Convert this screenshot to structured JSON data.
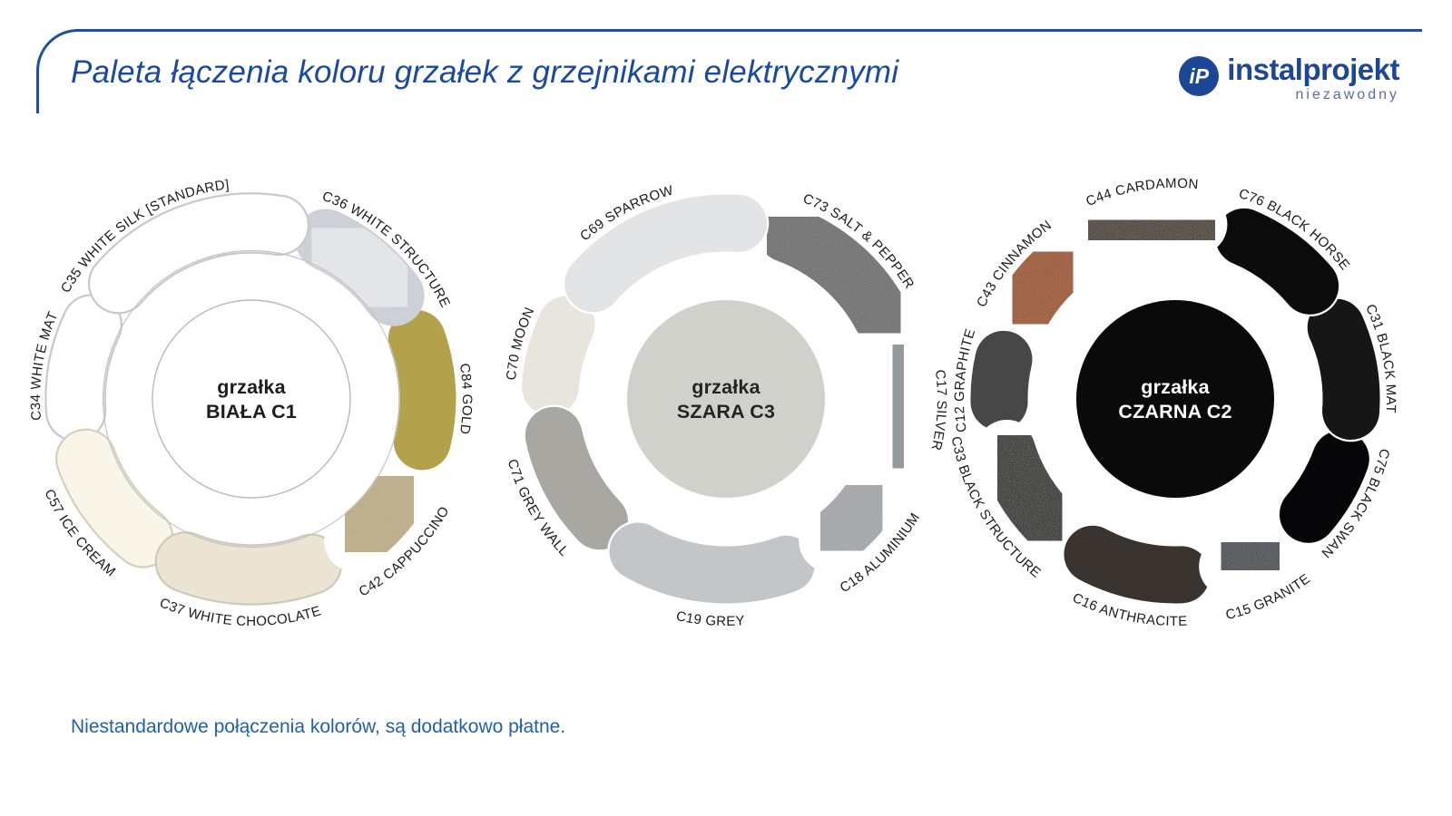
{
  "header": {
    "title": "Paleta łączenia koloru grzałek z grzejnikami elektrycznymi",
    "logo": {
      "icon": "iP",
      "name": "instalprojekt",
      "tagline": "niezawodny"
    },
    "accent_color": "#1d4fa3"
  },
  "footer": {
    "note": "Niestandardowe połączenia kolorów, są dodatkowo płatne."
  },
  "palettes": [
    {
      "id": "biala-c1",
      "center": {
        "line1": "grzałka",
        "line2": "BIAŁA C1",
        "fill": "#ffffff",
        "stroke": "#b9b9b9",
        "text_color": "#1d1d1b"
      },
      "ring_outline": "#c3c3c3",
      "segments": [
        {
          "code": "C35",
          "label": "C35 WHITE SILK [STANDARD]",
          "color": "#ffffff",
          "outline": "#c9c9c9",
          "textured": false,
          "from": 303,
          "to": 377,
          "label_angle": 327,
          "label_side": "top"
        },
        {
          "code": "C36",
          "label": "C36 WHITE STRUCTURE",
          "color": "#e8eaee",
          "outline": "#cdd0d6",
          "textured": true,
          "from": 17,
          "to": 62,
          "label_angle": 42,
          "label_side": "top"
        },
        {
          "code": "C84",
          "label": "C84 GOLD",
          "color": "#b4a14c",
          "outline": "#ffffff",
          "textured": false,
          "from": 62,
          "to": 112,
          "label_angle": 90,
          "label_side": "top"
        },
        {
          "code": "C42",
          "label": "C42 CAPPUCCINO",
          "color": "#bfae86",
          "outline": "#ffffff",
          "textured": true,
          "from": 112,
          "to": 152,
          "label_angle": 135,
          "label_side": "bottom"
        },
        {
          "code": "C37",
          "label": "C37 WHITE CHOCOLATE",
          "color": "#ebe4d3",
          "outline": "#cfc9b9",
          "textured": false,
          "from": 152,
          "to": 210,
          "label_angle": 183,
          "label_side": "bottom"
        },
        {
          "code": "C57",
          "label": "C57 ICE CREAM",
          "color": "#faf5e9",
          "outline": "#d6d0c0",
          "textured": false,
          "from": 210,
          "to": 258,
          "label_angle": 232,
          "label_side": "bottom"
        },
        {
          "code": "C34",
          "label": "C34 WHITE MAT",
          "color": "#ffffff",
          "outline": "#c9c9c9",
          "textured": false,
          "from": 258,
          "to": 303,
          "label_angle": 279,
          "label_side": "top"
        }
      ]
    },
    {
      "id": "szara-c3",
      "center": {
        "line1": "grzałka",
        "line2": "SZARA C3",
        "fill": "#d1d1cc",
        "stroke": "",
        "text_color": "#242424"
      },
      "ring_outline": "",
      "segments": [
        {
          "code": "C69",
          "label": "C69 SPARROW",
          "color": "#e3e4e6",
          "outline": "#ffffff",
          "textured": false,
          "from": 303,
          "to": 372,
          "label_angle": 332,
          "label_side": "top"
        },
        {
          "code": "C73",
          "label": "C73 SALT & PEPPER",
          "color": "#6e6e6e",
          "outline": "#ffffff",
          "textured": true,
          "from": 12,
          "to": 70,
          "label_angle": 40,
          "label_side": "top"
        },
        {
          "code": "C17",
          "label": "C17 SILVER",
          "color": "#8f9498",
          "outline": "#ffffff",
          "textured": true,
          "from": 70,
          "to": 115,
          "label_angle": 93,
          "label_side": "top"
        },
        {
          "code": "C18",
          "label": "C18 ALUMINIUM",
          "color": "#a5a8aa",
          "outline": "#ffffff",
          "textured": true,
          "from": 115,
          "to": 152,
          "label_angle": 135,
          "label_side": "bottom"
        },
        {
          "code": "C19",
          "label": "C19 GREY",
          "color": "#c3c6c8",
          "outline": "#ffffff",
          "textured": false,
          "from": 152,
          "to": 218,
          "label_angle": 184,
          "label_side": "bottom"
        },
        {
          "code": "C71",
          "label": "C71 GREY WALL",
          "color": "#a9a7a2",
          "outline": "#ffffff",
          "textured": false,
          "from": 218,
          "to": 266,
          "label_angle": 240,
          "label_side": "bottom"
        },
        {
          "code": "C70",
          "label": "C70 MOON",
          "color": "#e7e5de",
          "outline": "#ffffff",
          "textured": false,
          "from": 266,
          "to": 303,
          "label_angle": 285,
          "label_side": "top"
        }
      ]
    },
    {
      "id": "czarna-c2",
      "center": {
        "line1": "grzałka",
        "line2": "CZARNA C2",
        "fill": "#0a0a0a",
        "stroke": "",
        "text_color": "#ffffff"
      },
      "ring_outline": "",
      "segments": [
        {
          "code": "C44",
          "label": "C44 CARDAMON",
          "color": "#473a2c",
          "outline": "#ffffff",
          "textured": true,
          "from": 329,
          "to": 375,
          "label_angle": 351,
          "label_side": "top"
        },
        {
          "code": "C76",
          "label": "C76 BLACK HORSE",
          "color": "#0b0b0b",
          "outline": "#ffffff",
          "textured": false,
          "from": 15,
          "to": 58,
          "label_angle": 35,
          "label_side": "top"
        },
        {
          "code": "C31",
          "label": "C31 BLACK MAT",
          "color": "#161616",
          "outline": "#ffffff",
          "textured": false,
          "from": 58,
          "to": 102,
          "label_angle": 79,
          "label_side": "top"
        },
        {
          "code": "C75",
          "label": "C75 BLACK SWAN",
          "color": "#060608",
          "outline": "#ffffff",
          "textured": false,
          "from": 102,
          "to": 139,
          "label_angle": 120,
          "label_side": "top"
        },
        {
          "code": "C15",
          "label": "C15 GRANITE",
          "color": "#454b51",
          "outline": "#ffffff",
          "textured": true,
          "from": 139,
          "to": 170,
          "label_angle": 155,
          "label_side": "bottom"
        },
        {
          "code": "C16",
          "label": "C16 ANTHRACITE",
          "color": "#3a3430",
          "outline": "#ffffff",
          "textured": false,
          "from": 170,
          "to": 216,
          "label_angle": 192,
          "label_side": "bottom"
        },
        {
          "code": "C33",
          "label": "C33 BLACK STRUCTURE",
          "color": "#2b2927",
          "outline": "#ffffff",
          "textured": true,
          "from": 216,
          "to": 261,
          "label_angle": 239,
          "label_side": "bottom"
        },
        {
          "code": "C12",
          "label": "C12 GRAPHITE",
          "color": "#474747",
          "outline": "#ffffff",
          "textured": false,
          "from": 261,
          "to": 291,
          "label_angle": 275,
          "label_side": "top"
        },
        {
          "code": "C43",
          "label": "C43 CINNAMON",
          "color": "#9e521e",
          "outline": "#ffffff",
          "textured": true,
          "from": 291,
          "to": 329,
          "label_angle": 310,
          "label_side": "top"
        }
      ]
    },
    {
      "label_color": "#1b1b19"
    }
  ]
}
